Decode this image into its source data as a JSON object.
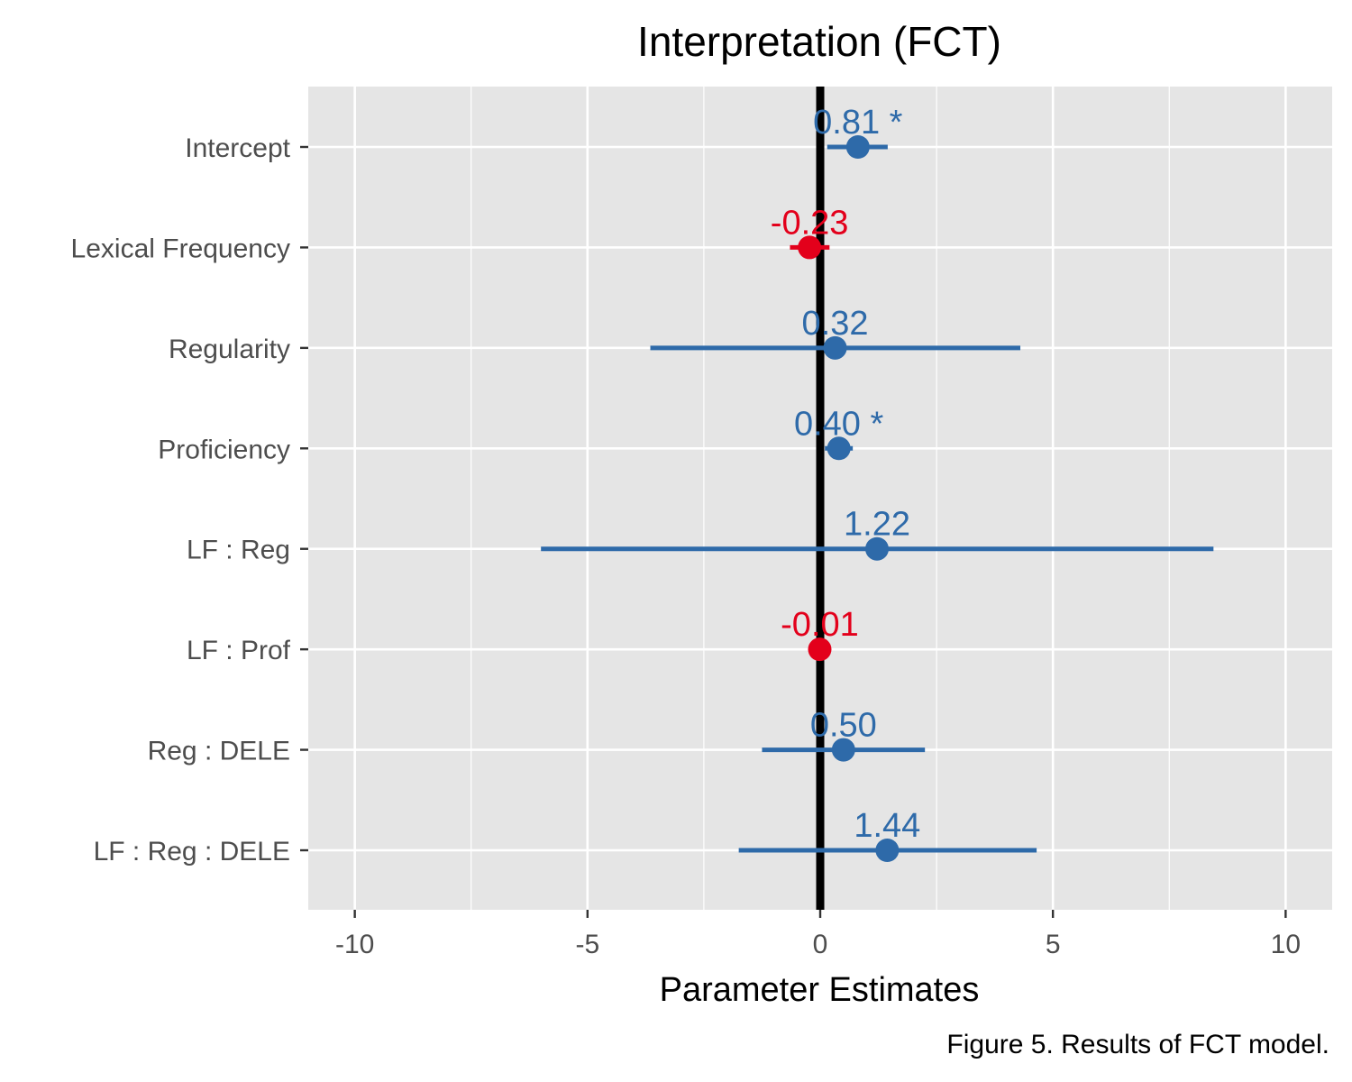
{
  "chart_data": {
    "type": "scatter",
    "subtype": "coefficient-plot with horizontal confidence intervals",
    "title": "Interpretation (FCT)",
    "xlabel": "Parameter Estimates",
    "ylabel": "",
    "caption": "Figure 5. Results of FCT model.",
    "xlim": [
      -11,
      11
    ],
    "x_ticks": [
      -10,
      -5,
      0,
      5,
      10
    ],
    "x_tick_labels": [
      "-10",
      "-5",
      "0",
      "5",
      "10"
    ],
    "grid": true,
    "reference_line_x": 0,
    "colors": {
      "positive": "#2e6aa9",
      "negative": "#e3001b",
      "panel": "#e5e5e5",
      "grid": "#ffffff",
      "reference": "#000000"
    },
    "points": [
      {
        "term": "Intercept",
        "estimate": 0.81,
        "ci_low": 0.15,
        "ci_high": 1.45,
        "label": "0.81 *",
        "sign": "positive"
      },
      {
        "term": "Lexical Frequency",
        "estimate": -0.23,
        "ci_low": -0.65,
        "ci_high": 0.2,
        "label": "-0.23",
        "sign": "negative"
      },
      {
        "term": "Regularity",
        "estimate": 0.32,
        "ci_low": -3.65,
        "ci_high": 4.3,
        "label": "0.32",
        "sign": "positive"
      },
      {
        "term": "Proficiency",
        "estimate": 0.4,
        "ci_low": 0.1,
        "ci_high": 0.7,
        "label": "0.40 *",
        "sign": "positive"
      },
      {
        "term": "LF : Reg",
        "estimate": 1.22,
        "ci_low": -6.0,
        "ci_high": 8.45,
        "label": "1.22",
        "sign": "positive"
      },
      {
        "term": "LF : Prof",
        "estimate": -0.01,
        "ci_low": -0.1,
        "ci_high": 0.08,
        "label": "-0.01",
        "sign": "negative"
      },
      {
        "term": "Reg : DELE",
        "estimate": 0.5,
        "ci_low": -1.25,
        "ci_high": 2.25,
        "label": "0.50",
        "sign": "positive"
      },
      {
        "term": "LF : Reg : DELE",
        "estimate": 1.44,
        "ci_low": -1.75,
        "ci_high": 4.65,
        "label": "1.44",
        "sign": "positive"
      }
    ]
  }
}
